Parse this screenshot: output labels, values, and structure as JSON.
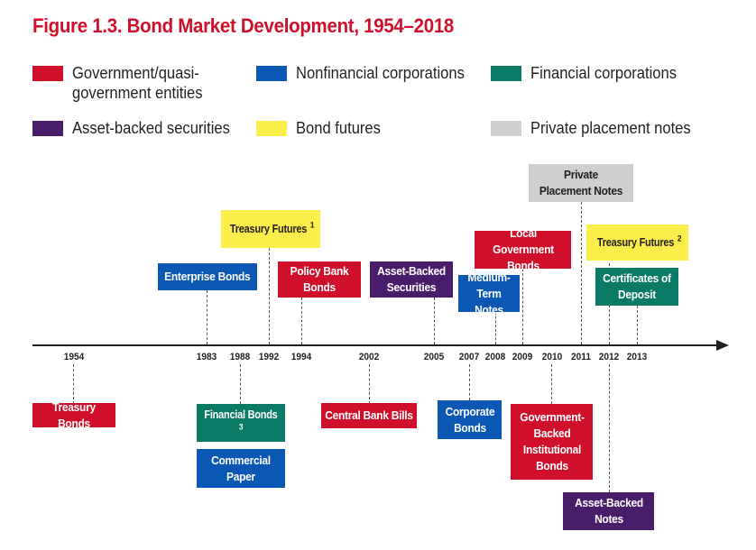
{
  "title": "Figure 1.3. Bond Market Development, 1954–2018",
  "legend": [
    {
      "label": "Government/quasi-government entities",
      "color": "#d0102b"
    },
    {
      "label": "Nonfinancial corporations",
      "color": "#0a57b4"
    },
    {
      "label": "Financial corporations",
      "color": "#0b7a66"
    },
    {
      "label": "Asset-backed securities",
      "color": "#4a1d6b"
    },
    {
      "label": "Bond futures",
      "color": "#fcee4a"
    },
    {
      "label": "Private placement notes",
      "color": "#cfcfcf"
    }
  ],
  "years": [
    "1954",
    "1983",
    "1988",
    "1992",
    "1994",
    "2002",
    "2005",
    "2007",
    "2008",
    "2009",
    "2010",
    "2011",
    "2012",
    "2013"
  ],
  "events": {
    "treasury_futures_1": {
      "text": "Treasury Futures",
      "note": "1",
      "year": "1992",
      "category": "Bond futures"
    },
    "enterprise_bonds": {
      "text": "Enterprise Bonds",
      "year": "1983",
      "category": "Nonfinancial corporations"
    },
    "policy_bank_bonds": {
      "text": "Policy Bank Bonds",
      "year": "1994",
      "category": "Government/quasi-government entities"
    },
    "asset_backed_securities": {
      "text": "Asset-Backed Securities",
      "year": "2005",
      "category": "Asset-backed securities"
    },
    "medium_term_notes": {
      "text": "Medium-Term Notes",
      "year": "2008",
      "category": "Nonfinancial corporations"
    },
    "local_government_bonds": {
      "text": "Local Government Bonds",
      "year": "2009",
      "category": "Government/quasi-government entities"
    },
    "private_placement_notes": {
      "text": "Private Placement Notes",
      "year": "2011",
      "category": "Private placement notes"
    },
    "treasury_futures_2": {
      "text": "Treasury Futures",
      "note": "2",
      "year": "2012",
      "category": "Bond futures"
    },
    "certificates_of_deposit": {
      "text": "Certificates of Deposit",
      "year": "2013",
      "category": "Financial corporations"
    },
    "treasury_bonds": {
      "text": "Treasury Bonds",
      "year": "1954",
      "category": "Government/quasi-government entities"
    },
    "financial_bonds": {
      "text": "Financial Bonds",
      "note": "3",
      "year": "1988",
      "category": "Financial corporations"
    },
    "commercial_paper": {
      "text": "Commercial Paper",
      "year": "1988",
      "category": "Nonfinancial corporations"
    },
    "central_bank_bills": {
      "text": "Central Bank Bills",
      "year": "2002",
      "category": "Government/quasi-government entities"
    },
    "corporate_bonds": {
      "text": "Corporate Bonds",
      "year": "2007",
      "category": "Nonfinancial corporations"
    },
    "government_backed_institutional_bonds": {
      "text": "Government-Backed Institutional Bonds",
      "year": "2010",
      "category": "Government/quasi-government entities"
    },
    "asset_backed_notes": {
      "text": "Asset-Backed Notes",
      "year": "2012",
      "category": "Asset-backed securities"
    }
  }
}
